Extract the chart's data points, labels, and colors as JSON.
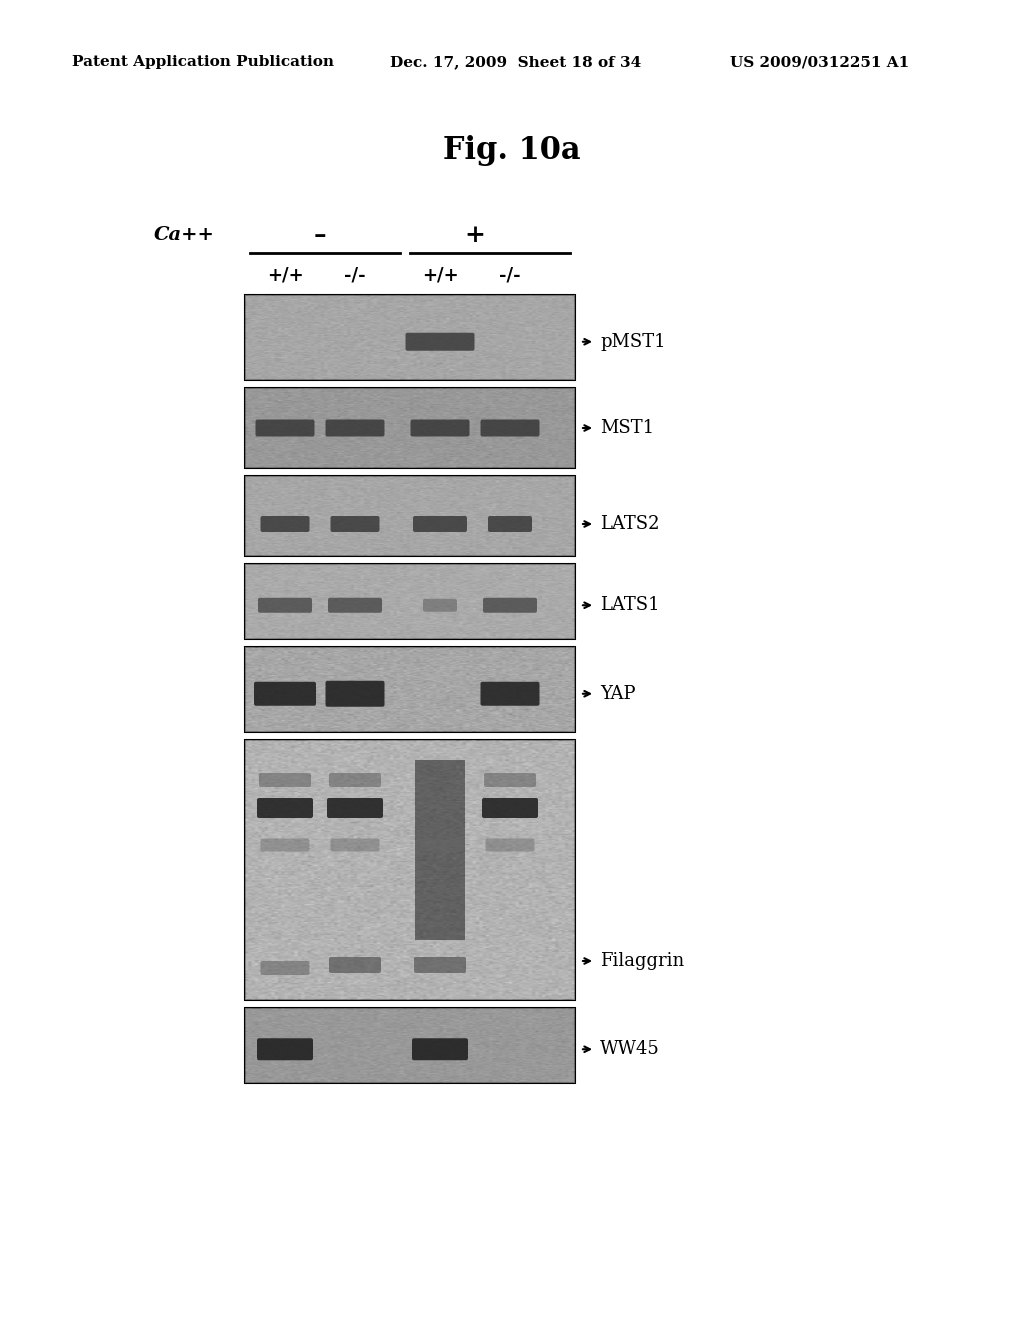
{
  "title": "Fig. 10a",
  "header_left": "Patent Application Publication",
  "header_middle": "Dec. 17, 2009  Sheet 18 of 34",
  "header_right": "US 2009/0312251 A1",
  "ca_label": "Ca++",
  "ca_minus": "–",
  "ca_plus": "+",
  "lane_labels": [
    "+/+",
    "-/-",
    "+/+",
    "-/-"
  ],
  "blot_labels": [
    "pMST1",
    "MST1",
    "LATS2",
    "LATS1",
    "YAP",
    "Filaggrin",
    "WW45"
  ],
  "background_color": "#ffffff",
  "fig_width": 10.24,
  "fig_height": 13.2
}
